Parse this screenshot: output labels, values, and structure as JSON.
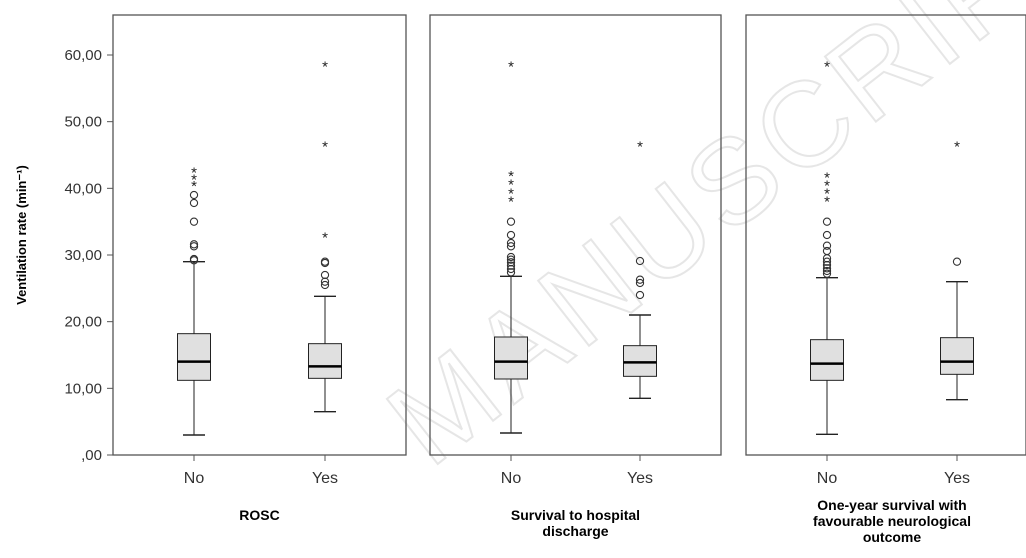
{
  "chart_data": {
    "type": "box",
    "ylabel": "Ventilation rate (min⁻¹)",
    "ylim": [
      0,
      66
    ],
    "yticks": [
      0,
      10,
      20,
      30,
      40,
      50,
      60
    ],
    "ytick_labels": [
      ",00",
      "10,00",
      "20,00",
      "30,00",
      "40,00",
      "50,00",
      "60,00"
    ],
    "watermark": "MANUSCRIPT",
    "box_fill": "#e0e0e0",
    "panels": [
      {
        "title": [
          "ROSC"
        ],
        "groups": [
          {
            "category": "No",
            "min": 3.0,
            "q1": 11.2,
            "median": 14.0,
            "q3": 18.2,
            "max": 29.0,
            "outliers": [
              29.2,
              29.4,
              31.3,
              31.6,
              35.0,
              37.8,
              39.0
            ],
            "extremes": [
              40.5,
              41.5,
              42.5
            ]
          },
          {
            "category": "Yes",
            "min": 6.5,
            "q1": 11.5,
            "median": 13.3,
            "q3": 16.7,
            "max": 23.8,
            "outliers": [
              25.5,
              26.0,
              27.0,
              28.8,
              29.0
            ],
            "extremes": [
              32.8,
              46.4,
              58.4
            ]
          }
        ]
      },
      {
        "title": [
          "Survival to hospital",
          "discharge"
        ],
        "groups": [
          {
            "category": "No",
            "min": 3.3,
            "q1": 11.4,
            "median": 14.0,
            "q3": 17.7,
            "max": 26.8,
            "outliers": [
              27.4,
              27.9,
              28.4,
              28.9,
              29.3,
              29.7,
              31.3,
              31.8,
              33.0,
              35.0
            ],
            "extremes": [
              38.2,
              39.4,
              40.7,
              42.0,
              58.4
            ]
          },
          {
            "category": "Yes",
            "min": 8.5,
            "q1": 11.8,
            "median": 13.9,
            "q3": 16.4,
            "max": 21.0,
            "outliers": [
              24.0,
              25.8,
              26.3,
              29.1
            ],
            "extremes": [
              46.4
            ]
          }
        ]
      },
      {
        "title": [
          "One-year survival with",
          "favourable neurological",
          "outcome"
        ],
        "groups": [
          {
            "category": "No",
            "min": 3.1,
            "q1": 11.2,
            "median": 13.7,
            "q3": 17.3,
            "max": 26.6,
            "outliers": [
              27.2,
              27.6,
              28.0,
              28.5,
              29.0,
              29.5,
              30.6,
              31.4,
              33.0,
              35.0
            ],
            "extremes": [
              38.2,
              39.4,
              40.6,
              41.8,
              58.4
            ]
          },
          {
            "category": "Yes",
            "min": 8.3,
            "q1": 12.1,
            "median": 14.0,
            "q3": 17.6,
            "max": 26.0,
            "outliers": [
              29.0
            ],
            "extremes": [
              46.4
            ]
          }
        ]
      }
    ]
  }
}
